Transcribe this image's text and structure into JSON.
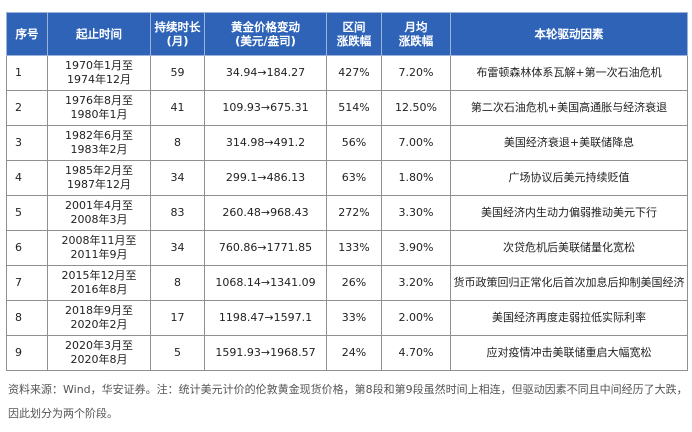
{
  "headers": [
    "序号",
    "起止时间",
    "持续时长\n(月)",
    "黄金价格变动\n(美元/盎司)",
    "区间\n涨跌幅",
    "月均\n涨跌幅",
    "本轮驱动因素"
  ],
  "rows": [
    {
      "idx": "1",
      "period_start": "1970年1月至",
      "period_end": "1974年12月",
      "months": "59",
      "price": "34.94→184.27",
      "range": "427%",
      "monthly": "7.20%",
      "driver": "布雷顿森林体系瓦解+第一次石油危机"
    },
    {
      "idx": "2",
      "period_start": "1976年8月至",
      "period_end": "1980年1月",
      "months": "41",
      "price": "109.93→675.31",
      "range": "514%",
      "monthly": "12.50%",
      "driver": "第二次石油危机+美国高通胀与经济衰退"
    },
    {
      "idx": "3",
      "period_start": "1982年6月至",
      "period_end": "1983年2月",
      "months": "8",
      "price": "314.98→491.2",
      "range": "56%",
      "monthly": "7.00%",
      "driver": "美国经济衰退+美联储降息"
    },
    {
      "idx": "4",
      "period_start": "1985年2月至",
      "period_end": "1987年12月",
      "months": "34",
      "price": "299.1→486.13",
      "range": "63%",
      "monthly": "1.80%",
      "driver": "广场协议后美元持续贬值"
    },
    {
      "idx": "5",
      "period_start": "2001年4月至",
      "period_end": "2008年3月",
      "months": "83",
      "price": "260.48→968.43",
      "range": "272%",
      "monthly": "3.30%",
      "driver": "美国经济内生动力偏弱推动美元下行"
    },
    {
      "idx": "6",
      "period_start": "2008年11月至",
      "period_end": "2011年9月",
      "months": "34",
      "price": "760.86→1771.85",
      "range": "133%",
      "monthly": "3.90%",
      "driver": "次贷危机后美联储量化宽松"
    },
    {
      "idx": "7",
      "period_start": "2015年12月至",
      "period_end": "2016年8月",
      "months": "8",
      "price": "1068.14→1341.09",
      "range": "26%",
      "monthly": "3.20%",
      "driver": "货币政策回归正常化后首次加息后抑制美国经济"
    },
    {
      "idx": "8",
      "period_start": "2018年9月至",
      "period_end": "2020年2月",
      "months": "17",
      "price": "1198.47→1597.1",
      "range": "33%",
      "monthly": "2.00%",
      "driver": "美国经济再度走弱拉低实际利率"
    },
    {
      "idx": "9",
      "period_start": "2020年3月至",
      "period_end": "2020年8月",
      "months": "5",
      "price": "1591.93→1968.57",
      "range": "24%",
      "monthly": "4.70%",
      "driver": "应对疫情冲击美联储重启大幅宽松"
    }
  ],
  "note": "资料来源：Wind，华安证券。注：统计美元计价的伦敦黄金现货价格，第8段和第9段虽然时间上相连，但驱动因素不同且中间经历了大跌，因此划分为两个阶段。"
}
